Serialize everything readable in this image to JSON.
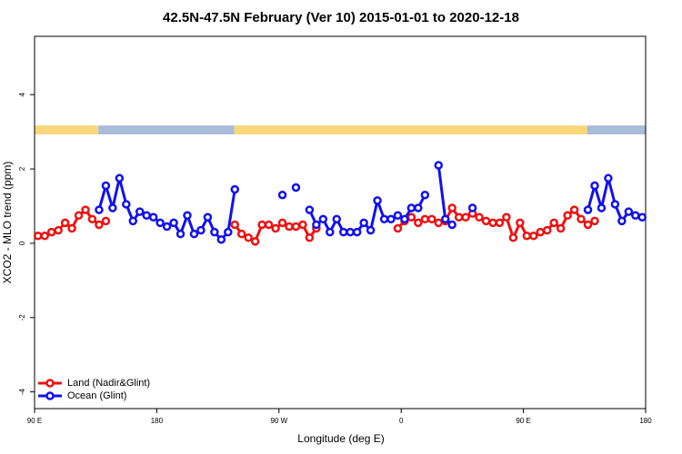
{
  "chart_data": {
    "type": "line",
    "title": "42.5N-47.5N February (Ver 10)   2015-01-01 to 2020-12-18",
    "xlabel": "Longitude (deg E)",
    "ylabel": "XCO2 - MLO trend (ppm)",
    "xlim": [
      90,
      540
    ],
    "ylim": [
      -4.45,
      5.57
    ],
    "xticks": [
      {
        "value": 90,
        "label": "90 E"
      },
      180,
      {
        "value": 270,
        "label": "90 W"
      },
      {
        "value": 360,
        "label": "0"
      },
      {
        "value": 450,
        "label": "90 E"
      },
      {
        "value": 540,
        "label": "180"
      }
    ],
    "yticks": [
      -4,
      -2,
      0,
      2,
      4
    ],
    "legend": "bottom-left",
    "band_ylim": [
      2.93,
      3.17
    ],
    "band": [
      {
        "start": 90,
        "end": 137,
        "color": "#f9d67a"
      },
      {
        "start": 137,
        "end": 237,
        "color": "#a8bbd8"
      },
      {
        "start": 237,
        "end": 497,
        "color": "#f9d67a"
      },
      {
        "start": 497,
        "end": 540,
        "color": "#a8bbd8"
      }
    ],
    "x": [
      92.5,
      97.5,
      102.5,
      107.5,
      112.5,
      117.5,
      122.5,
      127.5,
      132.5,
      137.5,
      142.5,
      147.5,
      152.5,
      157.5,
      162.5,
      167.5,
      172.5,
      177.5,
      182.5,
      187.5,
      192.5,
      197.5,
      202.5,
      207.5,
      212.5,
      217.5,
      222.5,
      227.5,
      232.5,
      237.5,
      242.5,
      247.5,
      252.5,
      257.5,
      262.5,
      267.5,
      272.5,
      277.5,
      282.5,
      287.5,
      292.5,
      297.5,
      302.5,
      307.5,
      312.5,
      317.5,
      322.5,
      327.5,
      332.5,
      337.5,
      342.5,
      347.5,
      352.5,
      357.5,
      362.5,
      367.5,
      372.5,
      377.5,
      382.5,
      387.5,
      392.5,
      397.5,
      402.5,
      407.5,
      412.5,
      417.5,
      422.5,
      427.5,
      432.5,
      437.5,
      442.5,
      447.5,
      452.5,
      457.5,
      462.5,
      467.5,
      472.5,
      477.5,
      482.5,
      487.5,
      492.5,
      497.5,
      502.5,
      507.5,
      512.5,
      517.5,
      522.5,
      527.5,
      532.5,
      537.5
    ],
    "series": [
      {
        "name": "Land (Nadir&Glint)",
        "color": "#ee1111",
        "values": [
          0.2,
          0.2,
          0.3,
          0.35,
          0.55,
          0.4,
          0.75,
          0.9,
          0.65,
          0.5,
          0.6,
          null,
          null,
          null,
          null,
          null,
          null,
          null,
          null,
          null,
          null,
          null,
          null,
          null,
          null,
          null,
          null,
          null,
          null,
          0.5,
          0.25,
          0.15,
          0.05,
          0.5,
          0.5,
          0.4,
          0.55,
          0.45,
          0.45,
          0.5,
          0.15,
          0.4,
          null,
          null,
          null,
          null,
          null,
          null,
          null,
          null,
          null,
          null,
          null,
          0.4,
          0.6,
          0.7,
          0.55,
          0.65,
          0.65,
          0.55,
          0.6,
          0.95,
          0.7,
          0.7,
          0.8,
          0.7,
          0.6,
          0.55,
          0.55,
          0.7,
          0.15,
          0.55,
          0.2,
          0.2,
          0.3,
          0.35,
          0.55,
          0.4,
          0.75,
          0.9,
          0.65,
          0.5,
          0.6,
          null,
          null,
          null,
          null,
          null,
          null,
          null
        ]
      },
      {
        "name": "Ocean (Glint)",
        "color": "#1111ee",
        "values": [
          null,
          null,
          null,
          null,
          null,
          null,
          null,
          null,
          null,
          0.9,
          1.55,
          0.95,
          1.75,
          1.05,
          0.6,
          0.85,
          0.75,
          0.7,
          0.55,
          0.45,
          0.55,
          0.25,
          0.75,
          0.25,
          0.35,
          0.7,
          0.3,
          0.1,
          0.3,
          1.45,
          null,
          null,
          null,
          null,
          null,
          null,
          1.3,
          null,
          1.5,
          null,
          0.9,
          0.5,
          0.65,
          0.3,
          0.65,
          0.3,
          0.3,
          0.3,
          0.55,
          0.35,
          1.15,
          0.65,
          0.65,
          0.75,
          0.65,
          0.95,
          0.95,
          1.3,
          null,
          2.1,
          0.65,
          0.5,
          null,
          null,
          0.95,
          null,
          null,
          null,
          null,
          null,
          null,
          null,
          null,
          null,
          null,
          null,
          null,
          null,
          null,
          null,
          null,
          0.9,
          1.55,
          0.95,
          1.75,
          1.05,
          0.6,
          0.85,
          0.75,
          0.7
        ]
      }
    ]
  }
}
